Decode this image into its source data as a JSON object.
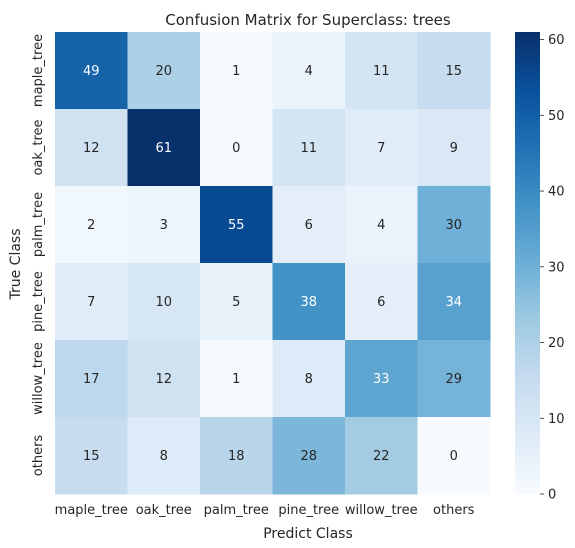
{
  "chart_data": {
    "type": "heatmap",
    "title": "Confusion Matrix for Superclass: trees",
    "xlabel": "Predict Class",
    "ylabel": "True Class",
    "x_categories": [
      "maple_tree",
      "oak_tree",
      "palm_tree",
      "pine_tree",
      "willow_tree",
      "others"
    ],
    "y_categories": [
      "maple_tree",
      "oak_tree",
      "palm_tree",
      "pine_tree",
      "willow_tree",
      "others"
    ],
    "values": [
      [
        49,
        20,
        1,
        4,
        11,
        15
      ],
      [
        12,
        61,
        0,
        11,
        7,
        9
      ],
      [
        2,
        3,
        55,
        6,
        4,
        30
      ],
      [
        7,
        10,
        5,
        38,
        6,
        34
      ],
      [
        17,
        12,
        1,
        8,
        33,
        29
      ],
      [
        15,
        8,
        18,
        28,
        22,
        0
      ]
    ],
    "colormap": "Blues",
    "vmin": 0,
    "vmax": 61,
    "colorbar_ticks": [
      0,
      10,
      20,
      30,
      40,
      50,
      60
    ],
    "grid": false
  }
}
